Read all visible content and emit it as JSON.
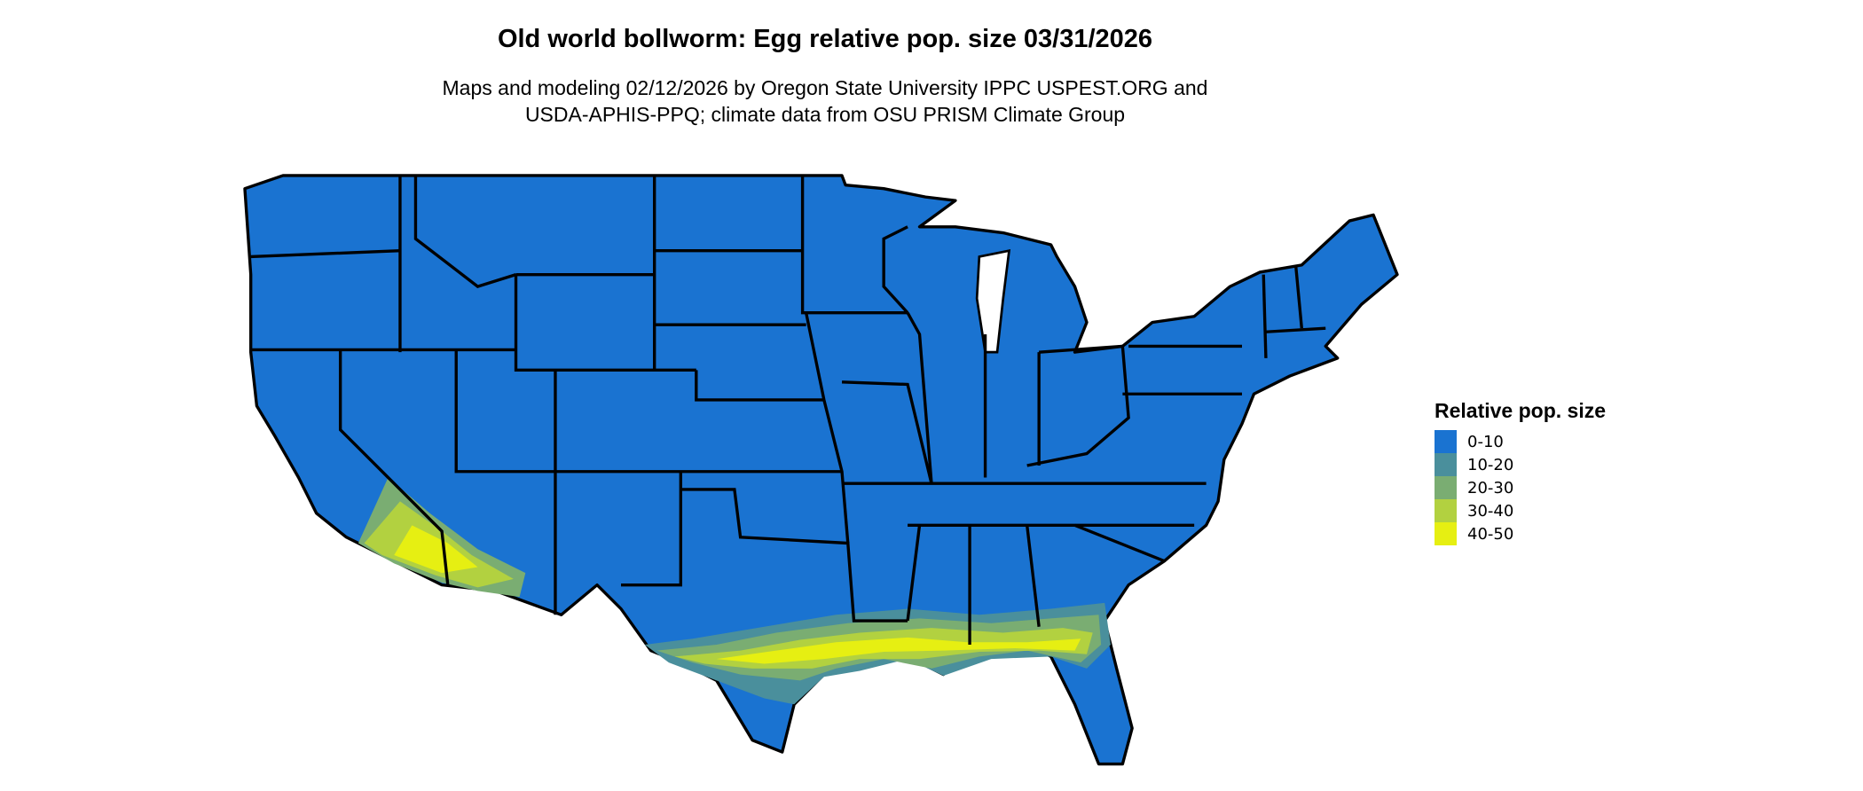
{
  "title": "Old world bollworm: Egg relative pop. size 03/31/2026",
  "subtitle_lines": [
    "Maps and modeling 02/12/2026 by Oregon State University IPPC USPEST.ORG and",
    "USDA-APHIS-PPQ; climate data from OSU PRISM Climate Group"
  ],
  "legend": {
    "title": "Relative pop. size",
    "items": [
      {
        "label": "0-10",
        "color": "#1a73d1"
      },
      {
        "label": "10-20",
        "color": "#4a8f9c"
      },
      {
        "label": "20-30",
        "color": "#7aad72"
      },
      {
        "label": "30-40",
        "color": "#b2d140"
      },
      {
        "label": "40-50",
        "color": "#e6ef12"
      }
    ]
  },
  "map": {
    "region": "Contiguous United States",
    "border_color": "#000000",
    "high_value_regions": [
      "Southern Arizona / Southern California deserts",
      "Gulf Coast (Texas to Georgia/Florida)"
    ]
  }
}
